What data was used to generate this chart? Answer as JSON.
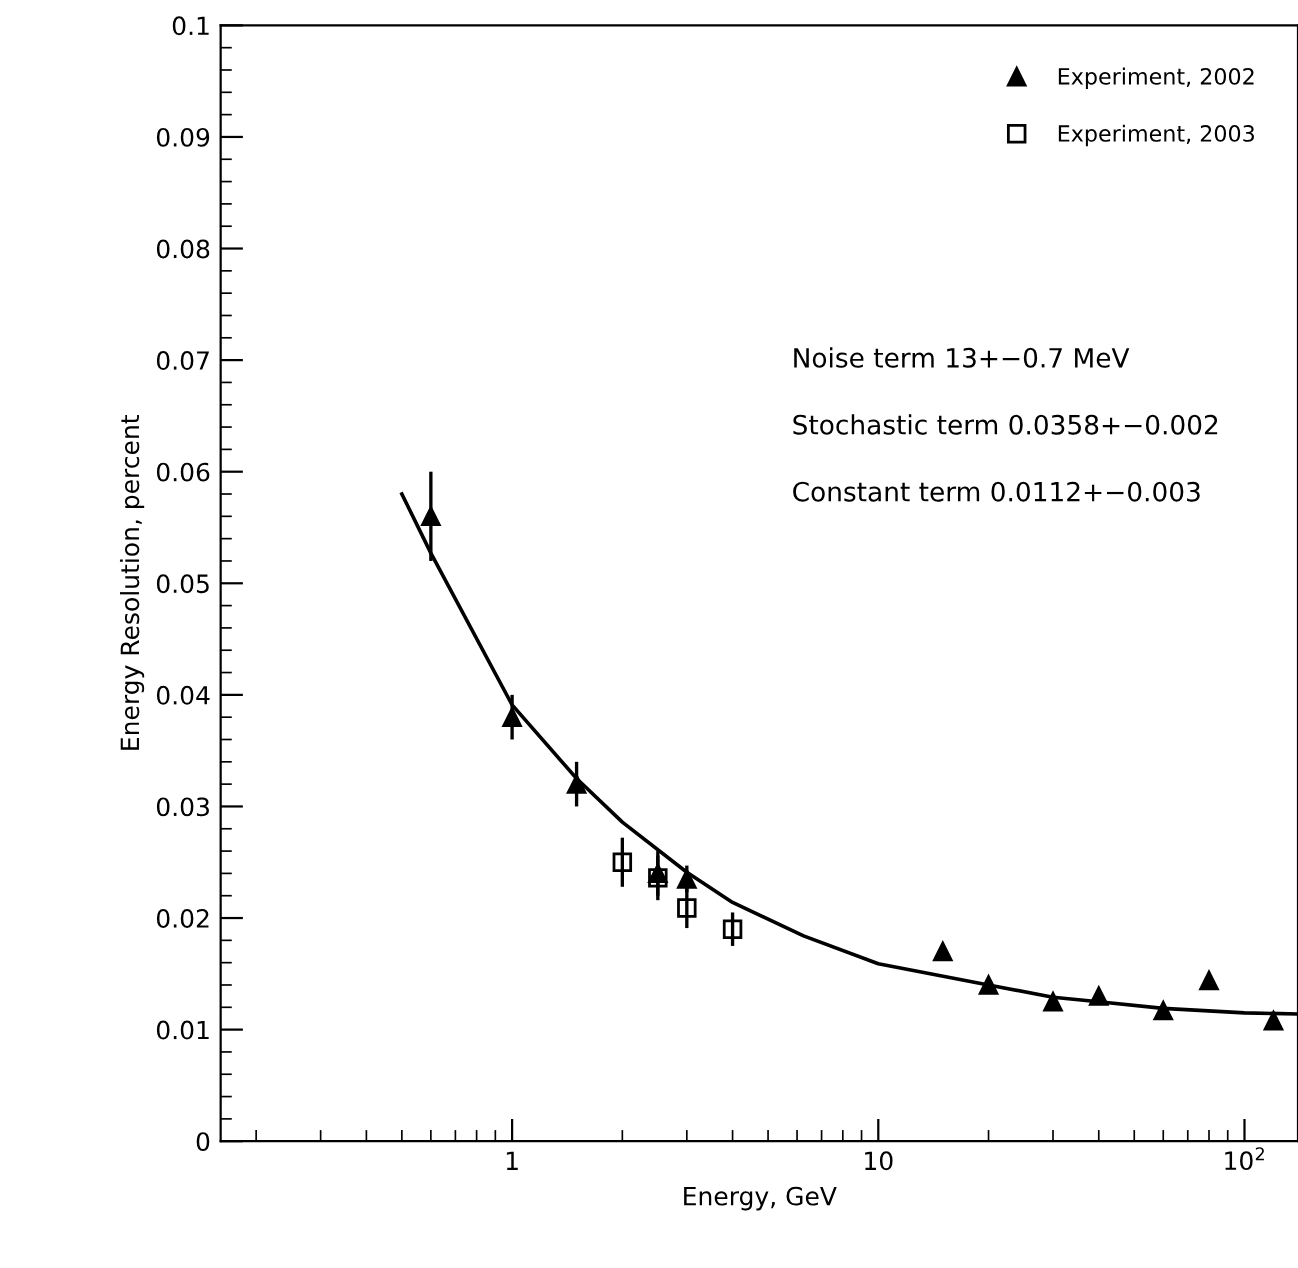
{
  "chart_data": {
    "type": "scatter",
    "xlabel": "Energy, GeV",
    "ylabel": "Energy Resolution, percent",
    "log": "x",
    "xlim": [
      0.16,
      140
    ],
    "xticks": [
      1,
      10,
      {
        "value": 100,
        "label": "10$^{2}$"
      }
    ],
    "ylim": [
      0,
      0.1
    ],
    "yticks": [
      0,
      0.01,
      0.02,
      0.03,
      0.04,
      0.05,
      0.06,
      0.07,
      0.08,
      0.09,
      0.1
    ],
    "grid": false,
    "legend": "top right",
    "annotations": [
      "Noise term 13+−0.7 MeV",
      "Stochastic term 0.0358+−0.002",
      "Constant term 0.0112+−0.003"
    ],
    "series": [
      {
        "name": "Experiment, 2002",
        "marker": "triangle",
        "color": "#000000",
        "x": [
          0.6,
          1,
          1.5,
          2.5,
          3,
          15,
          20,
          30,
          40,
          60,
          80,
          120
        ],
        "values": [
          0.056,
          0.038,
          0.032,
          0.024,
          0.0235,
          0.017,
          0.014,
          0.0125,
          0.013,
          0.0117,
          0.0144,
          0.0108
        ],
        "errors": [
          0.004,
          0.002,
          0.002,
          0.002,
          0.0012,
          null,
          null,
          null,
          null,
          null,
          null,
          null
        ]
      },
      {
        "name": "Experiment, 2003",
        "marker": "square",
        "color": "#000000",
        "x": [
          2,
          2.5,
          3,
          4
        ],
        "values": [
          0.025,
          0.0236,
          0.0209,
          0.019
        ],
        "errors": [
          0.0022,
          0.002,
          0.0018,
          0.0015
        ]
      },
      {
        "type": "line",
        "marker": "none",
        "line_style": "solid",
        "color": "#000000",
        "x": [
          0.5,
          0.6,
          1,
          1.5,
          2,
          3,
          4,
          6.25,
          10,
          20,
          30,
          40,
          60,
          100,
          140
        ],
        "values": [
          0.058,
          0.0527,
          0.0391,
          0.0325,
          0.0286,
          0.0241,
          0.0214,
          0.0184,
          0.0159,
          0.014,
          0.0129,
          0.0125,
          0.0119,
          0.0115,
          0.0114
        ]
      }
    ]
  }
}
